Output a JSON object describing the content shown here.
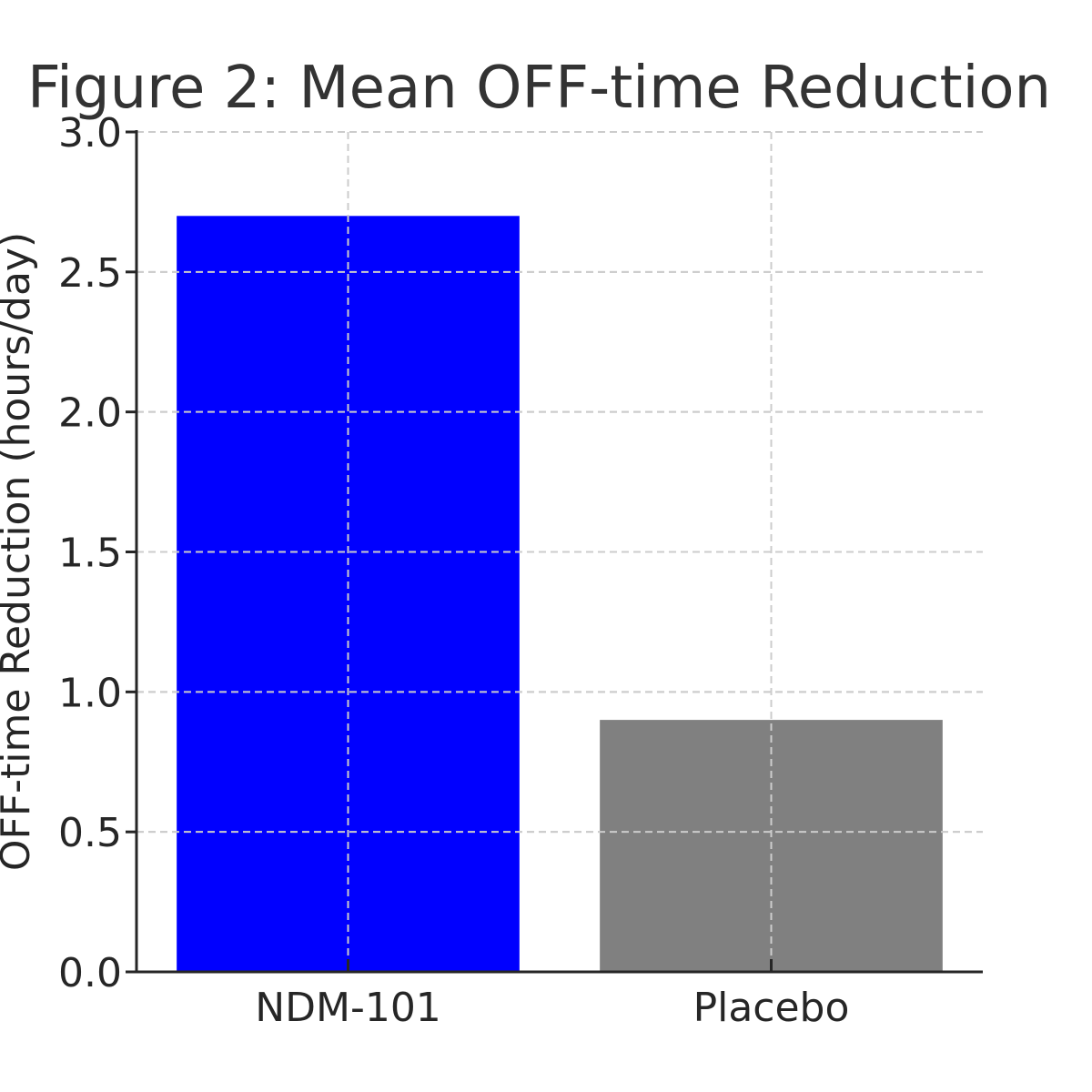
{
  "chart_data": {
    "type": "bar",
    "title": "Figure 2: Mean OFF-time Reduction",
    "xlabel": "",
    "ylabel": "OFF-time Reduction (hours/day)",
    "categories": [
      "NDM-101",
      "Placebo"
    ],
    "values": [
      2.7,
      0.9
    ],
    "colors": [
      "#0000ff",
      "#808080"
    ],
    "ylim": [
      0,
      3.0
    ],
    "yticks": [
      0.0,
      0.5,
      1.0,
      1.5,
      2.0,
      2.5,
      3.0
    ],
    "ytick_labels": [
      "0.0",
      "0.5",
      "1.0",
      "1.5",
      "2.0",
      "2.5",
      "3.0"
    ],
    "grid": true,
    "legend": "none"
  }
}
